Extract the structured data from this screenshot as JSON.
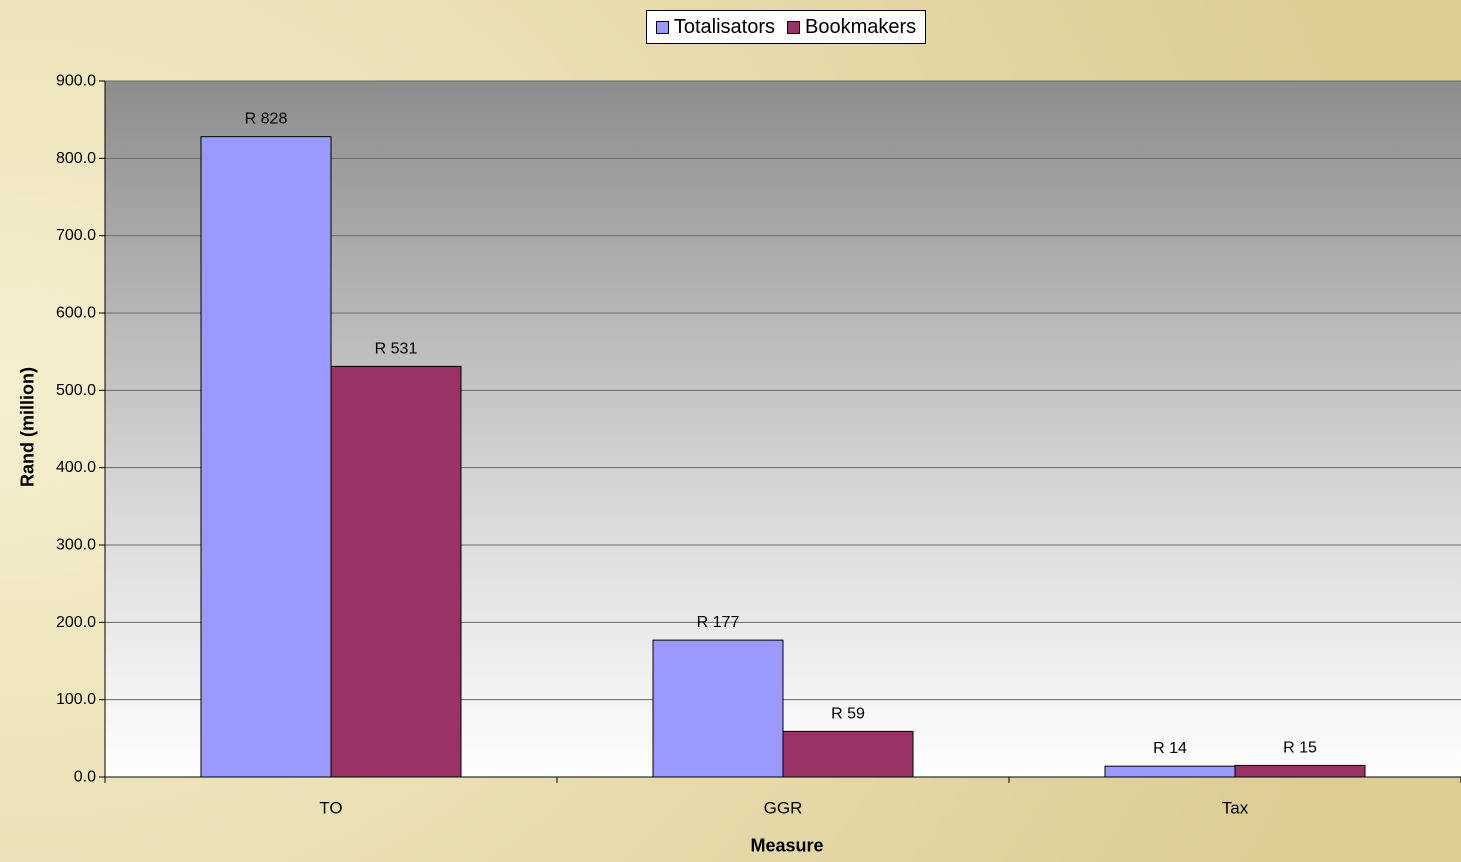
{
  "chart_data": {
    "type": "bar",
    "categories": [
      "TO",
      "GGR",
      "Tax"
    ],
    "series": [
      {
        "name": "Totalisators",
        "values": [
          828,
          177,
          14
        ],
        "labels": [
          "R 828",
          "R 177",
          "R 14"
        ],
        "color": "#9999ff"
      },
      {
        "name": "Bookmakers",
        "values": [
          531,
          59,
          15
        ],
        "labels": [
          "R 531",
          "R 59",
          "R 15"
        ],
        "color": "#993366"
      }
    ],
    "xlabel": "Measure",
    "ylabel": "Rand (million)",
    "ylim": [
      0,
      900
    ],
    "yticks": [
      "0.0",
      "100.0",
      "200.0",
      "300.0",
      "400.0",
      "500.0",
      "600.0",
      "700.0",
      "800.0",
      "900.0"
    ],
    "grid": true,
    "legend_position": "top"
  }
}
